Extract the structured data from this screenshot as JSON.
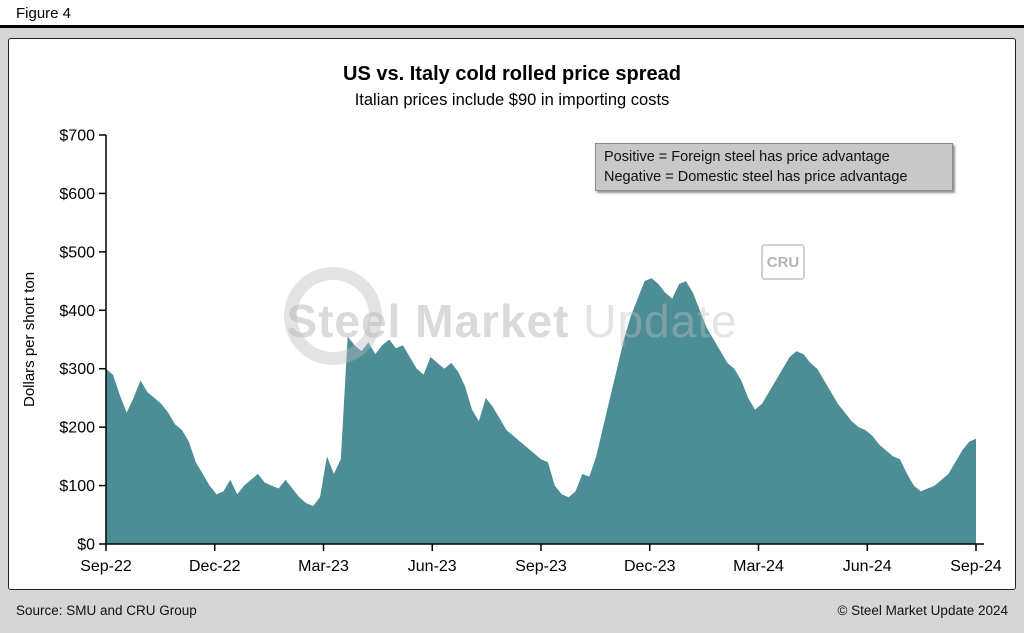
{
  "header": {
    "figure_label": "Figure 4"
  },
  "chart": {
    "title": "US vs. Italy cold rolled price spread",
    "subtitle": "Italian prices include $90 in importing costs",
    "ylabel": "Dollars per short ton",
    "annotation": {
      "line1": "Positive = Foreign steel has price advantage",
      "line2": "Negative = Domestic steel has price advantage"
    }
  },
  "watermark": {
    "text_primary": "Steel Market",
    "text_secondary": "Update",
    "cru_label": "CRU"
  },
  "footer": {
    "source": "Source: SMU and CRU Group",
    "copyright": "© Steel Market Update 2024"
  },
  "chart_data": {
    "type": "area",
    "title": "US vs. Italy cold rolled price spread",
    "subtitle": "Italian prices include $90 in importing costs",
    "xlabel": "",
    "ylabel": "Dollars per short ton",
    "ylim": [
      0,
      700
    ],
    "grid": false,
    "legend_position": "none",
    "fill_color": "#4d8e96",
    "background_color": "#ffffff",
    "y_ticks": [
      0,
      100,
      200,
      300,
      400,
      500,
      600,
      700
    ],
    "y_tick_labels": [
      "$0",
      "$100",
      "$200",
      "$300",
      "$400",
      "$500",
      "$600",
      "$700"
    ],
    "x_tick_labels": [
      "Sep-22",
      "Dec-22",
      "Mar-23",
      "Jun-23",
      "Sep-23",
      "Dec-23",
      "Mar-24",
      "Jun-24",
      "Sep-24"
    ],
    "series_name": "US minus Italy cold rolled price spread ($ per short ton)",
    "x_note": "values evenly spaced from Sep-22 to Sep-24",
    "values": [
      300,
      290,
      255,
      225,
      250,
      280,
      260,
      250,
      240,
      225,
      205,
      195,
      175,
      140,
      120,
      100,
      85,
      90,
      110,
      85,
      100,
      110,
      120,
      105,
      100,
      95,
      110,
      95,
      80,
      70,
      65,
      80,
      150,
      120,
      145,
      355,
      340,
      330,
      345,
      325,
      340,
      350,
      335,
      340,
      320,
      300,
      290,
      320,
      310,
      300,
      310,
      295,
      270,
      230,
      210,
      250,
      235,
      215,
      195,
      185,
      175,
      165,
      155,
      145,
      140,
      100,
      85,
      80,
      90,
      120,
      115,
      150,
      200,
      250,
      300,
      350,
      390,
      420,
      450,
      455,
      445,
      430,
      420,
      445,
      450,
      430,
      400,
      370,
      350,
      330,
      310,
      300,
      280,
      250,
      230,
      240,
      260,
      280,
      300,
      320,
      330,
      325,
      310,
      300,
      280,
      260,
      240,
      225,
      210,
      200,
      195,
      185,
      170,
      160,
      150,
      145,
      120,
      100,
      90,
      95,
      100,
      110,
      120,
      140,
      160,
      175,
      180
    ]
  }
}
